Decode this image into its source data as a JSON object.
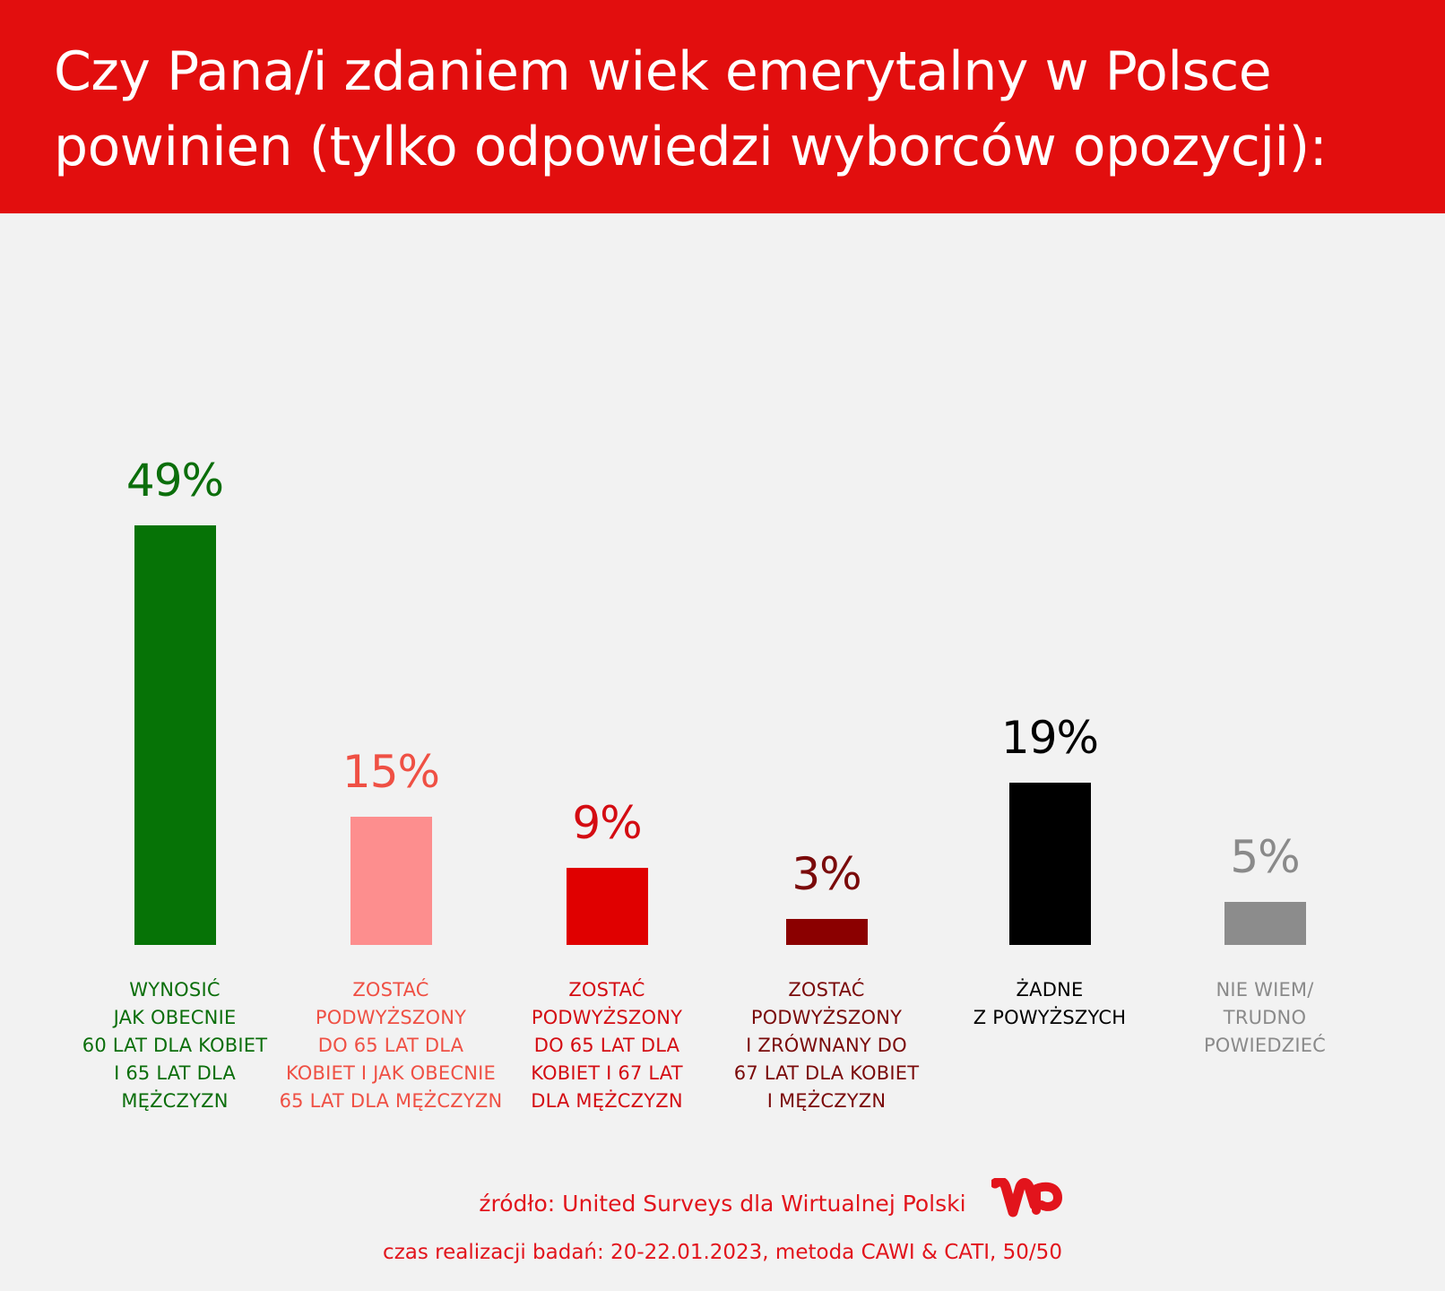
{
  "header": {
    "title_line1": "Czy Pana/i zdaniem wiek emerytalny w Polsce",
    "title_line2": "powinien (tylko odpowiedzi wyborców opozycji):",
    "background_color": "#e20e0e"
  },
  "chart_data": {
    "type": "bar",
    "title": "Czy Pana/i zdaniem wiek emerytalny w Polsce powinien (tylko odpowiedzi wyborców opozycji):",
    "xlabel": "",
    "ylabel": "",
    "ylim": [
      0,
      50
    ],
    "grid": false,
    "legend": "none",
    "unit": "%",
    "categories": [
      "WYNOSIĆ JAK OBECNIE 60 LAT DLA KOBIET I 65 LAT DLA MĘŻCZYZN",
      "ZOSTAĆ PODWYŻSZONY DO 65 LAT DLA KOBIET I JAK OBECNIE 65 LAT DLA MĘŻCZYZN",
      "ZOSTAĆ PODWYŻSZONY DO 65 LAT DLA KOBIET I 67 LAT DLA MĘŻCZYZN",
      "ZOSTAĆ PODWYŻSZONY I ZRÓWNANY DO 67 LAT DLA KOBIET I MĘŻCZYZN",
      "ŻADNE Z POWYŻSZYCH",
      "NIE WIEM/ TRUDNO POWIEDZIEĆ"
    ],
    "values": [
      49,
      15,
      9,
      3,
      19,
      5
    ],
    "value_labels": [
      "49%",
      "15%",
      "9%",
      "3%",
      "19%",
      "5%"
    ],
    "colors": [
      "#067306",
      "#fd8e8e",
      "#e00000",
      "#8b0000",
      "#000000",
      "#8c8c8c"
    ],
    "label_colors": [
      "#0b6e0b",
      "#ef5044",
      "#d40c12",
      "#7a0a0a",
      "#000000",
      "#8a8a8a"
    ],
    "label_lines": [
      [
        "WYNOSIĆ",
        "JAK OBECNIE",
        "60 LAT DLA KOBIET",
        "I 65 LAT DLA",
        "MĘŻCZYZN"
      ],
      [
        "ZOSTAĆ",
        "PODWYŻSZONY",
        "DO 65 LAT DLA",
        "KOBIET I JAK OBECNIE",
        "65 LAT DLA MĘŻCZYZN"
      ],
      [
        "ZOSTAĆ",
        "PODWYŻSZONY",
        "DO 65 LAT DLA",
        "KOBIET I 67 LAT",
        "DLA MĘŻCZYZN"
      ],
      [
        "ZOSTAĆ",
        "PODWYŻSZONY",
        "I ZRÓWNANY DO",
        "67 LAT DLA KOBIET",
        "I MĘŻCZYZN"
      ],
      [
        "ŻADNE",
        "Z POWYŻSZYCH"
      ],
      [
        "NIE WIEM/",
        "TRUDNO",
        "POWIEDZIEĆ"
      ]
    ]
  },
  "labels": {
    "c0": "WYNOSIĆ\nJAK OBECNIE\n60 LAT DLA KOBIET\nI 65 LAT DLA\nMĘŻCZYZN",
    "c1": "ZOSTAĆ\nPODWYŻSZONY\nDO 65 LAT DLA\nKOBIET I JAK OBECNIE\n65 LAT DLA MĘŻCZYZN",
    "c2": "ZOSTAĆ\nPODWYŻSZONY\nDO 65 LAT DLA\nKOBIET I 67 LAT\nDLA MĘŻCZYZN",
    "c3": "ZOSTAĆ\nPODWYŻSZONY\nI ZRÓWNANY DO\n67 LAT DLA KOBIET\nI MĘŻCZYZN",
    "c4": "ŻADNE\nZ POWYŻSZYCH",
    "c5": "NIE WIEM/\nTRUDNO\nPOWIEDZIEĆ"
  },
  "footer": {
    "source": "źródło: United Surveys dla Wirtualnej Polski",
    "fieldwork": "czas realizacji badań: 20-22.01.2023, metoda CAWI & CATI, 50/50",
    "logo": "WP",
    "text_color": "#e2141c"
  }
}
